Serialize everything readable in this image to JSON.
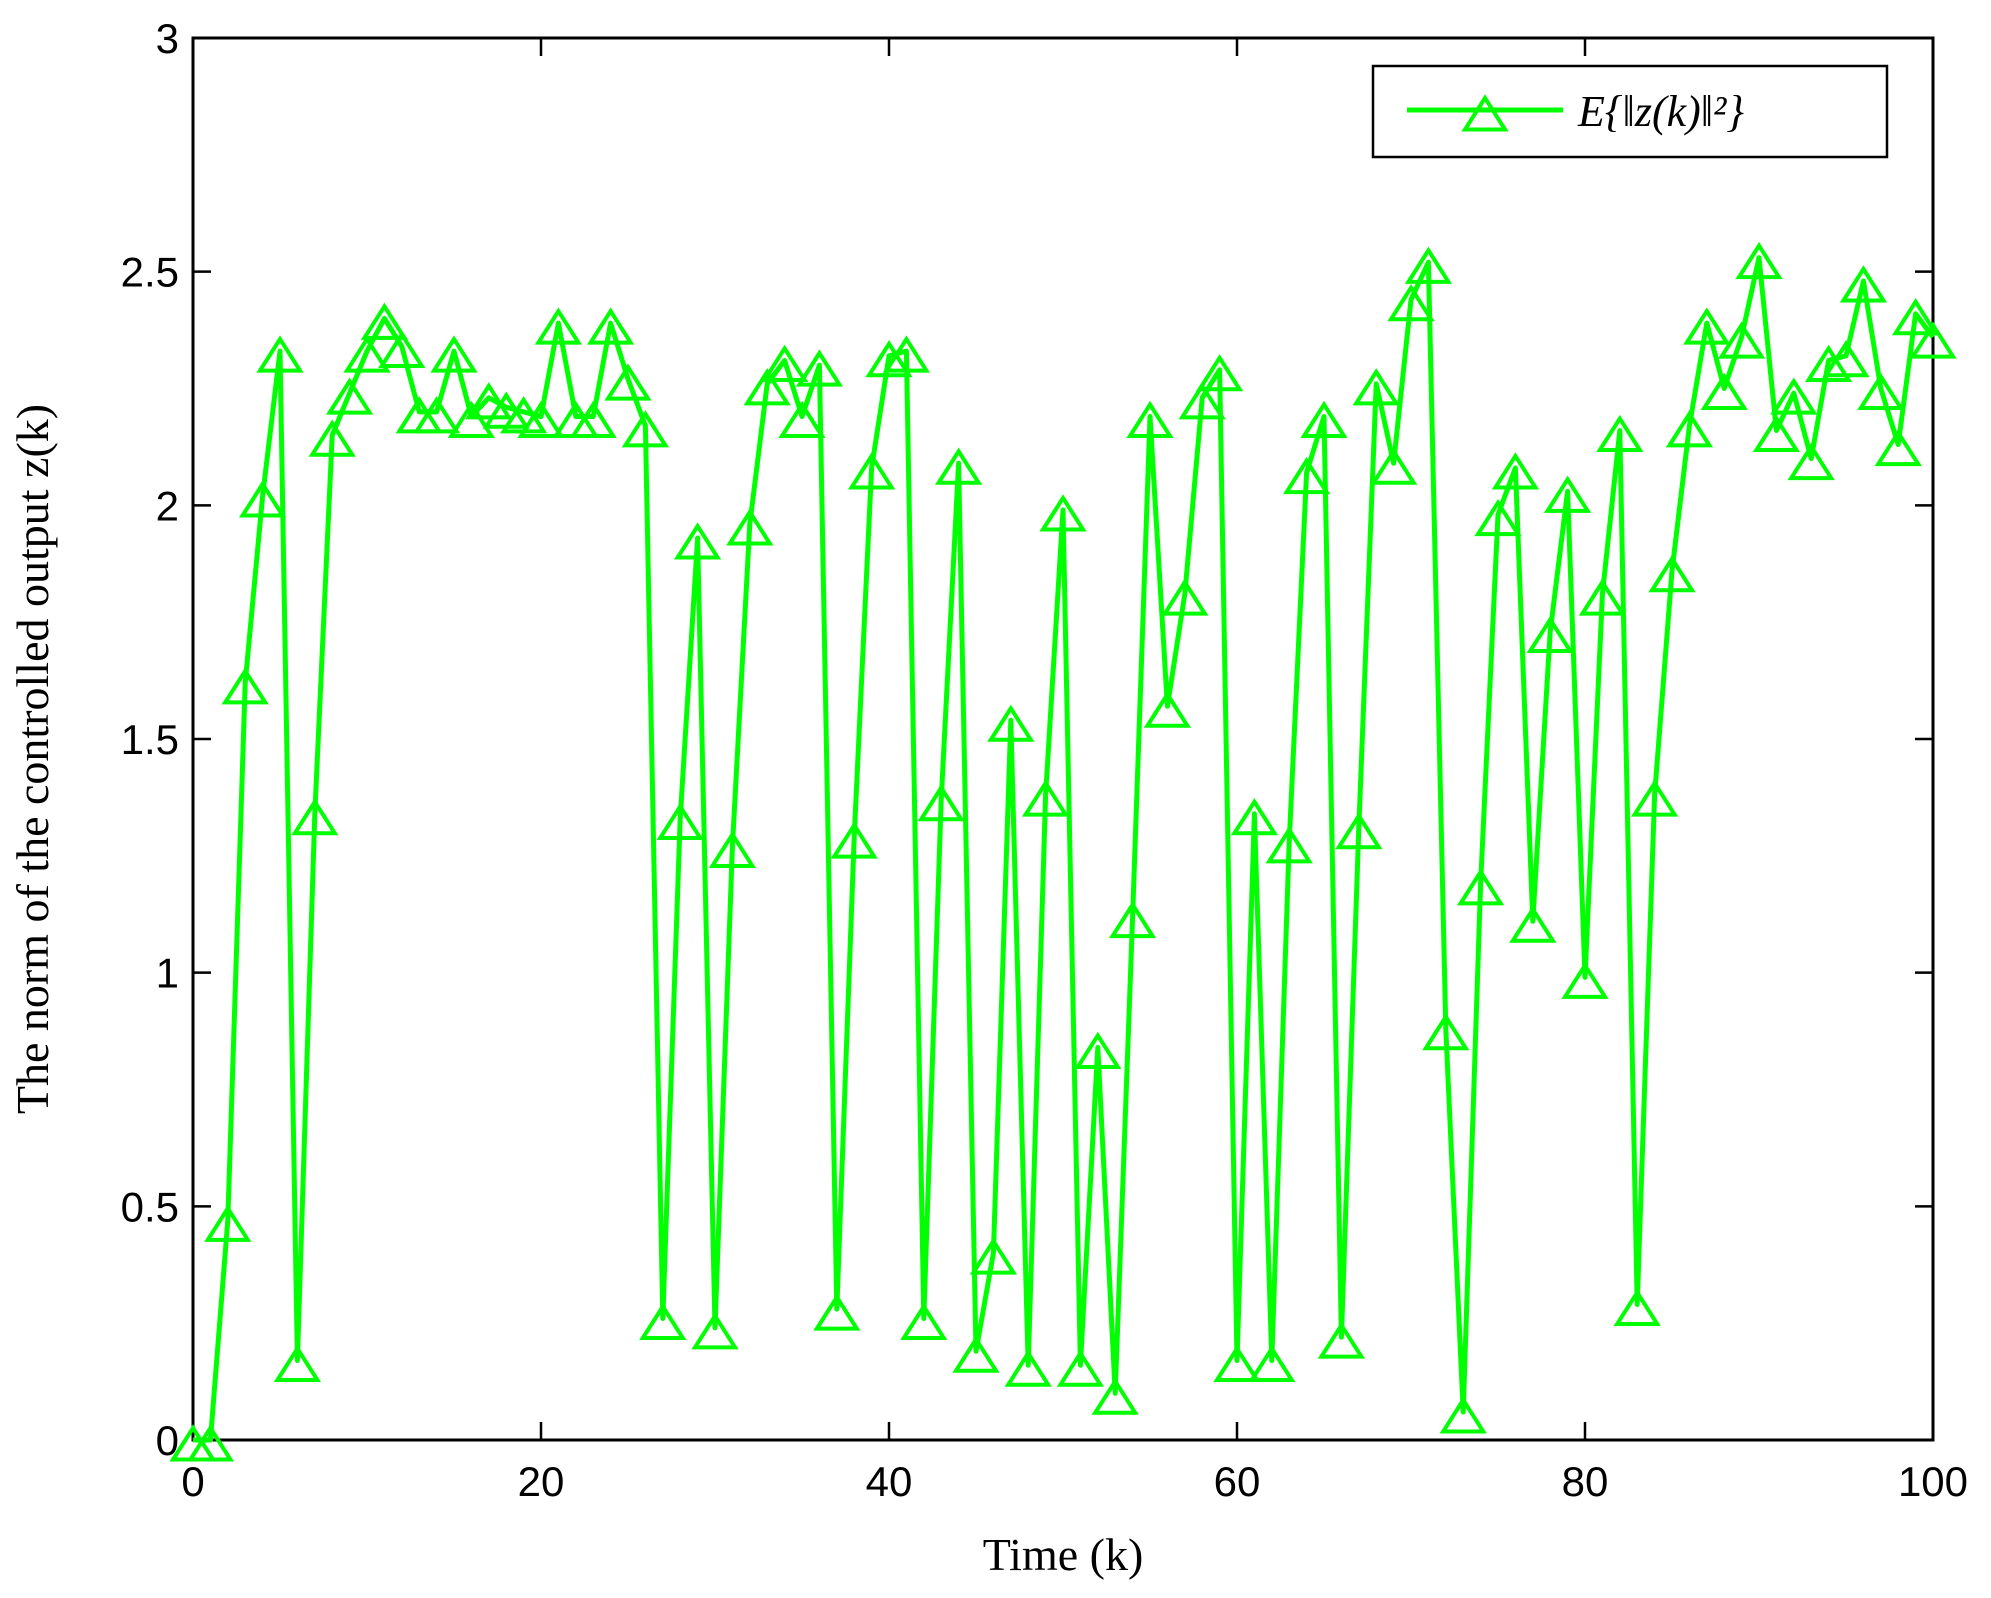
{
  "chart_data": {
    "type": "line",
    "title": "",
    "xlabel": "Time (k)",
    "ylabel": "The norm of the controlled output z(k)",
    "xlim": [
      0,
      100
    ],
    "ylim": [
      0,
      3
    ],
    "xticks": [
      0,
      20,
      40,
      60,
      80,
      100
    ],
    "yticks": [
      0,
      0.5,
      1,
      1.5,
      2,
      2.5,
      3
    ],
    "xtick_labels": [
      "0",
      "20",
      "40",
      "60",
      "80",
      "100"
    ],
    "ytick_labels": [
      "0",
      "0.5",
      "1",
      "1.5",
      "2",
      "2.5",
      "3"
    ],
    "grid": false,
    "legend_position": "top-right",
    "series": [
      {
        "name": "E{‖z(k)‖²}",
        "color": "#00ff00",
        "marker": "triangle-up",
        "x": [
          0,
          1,
          2,
          3,
          4,
          5,
          6,
          7,
          8,
          9,
          10,
          11,
          12,
          13,
          14,
          15,
          16,
          17,
          18,
          19,
          20,
          21,
          22,
          23,
          24,
          25,
          26,
          27,
          28,
          29,
          30,
          31,
          32,
          33,
          34,
          35,
          36,
          37,
          38,
          39,
          40,
          41,
          42,
          43,
          44,
          45,
          46,
          47,
          48,
          49,
          50,
          51,
          52,
          53,
          54,
          55,
          56,
          57,
          58,
          59,
          60,
          61,
          62,
          63,
          64,
          65,
          66,
          67,
          68,
          69,
          70,
          71,
          72,
          73,
          74,
          75,
          76,
          77,
          78,
          79,
          80,
          81,
          82,
          83,
          84,
          85,
          86,
          87,
          88,
          89,
          90,
          91,
          92,
          93,
          94,
          95,
          96,
          97,
          98,
          99,
          100
        ],
        "values": [
          0.0,
          0.0,
          0.47,
          1.62,
          2.02,
          2.33,
          0.17,
          1.34,
          2.15,
          2.24,
          2.33,
          2.4,
          2.34,
          2.2,
          2.2,
          2.33,
          2.19,
          2.23,
          2.21,
          2.2,
          2.19,
          2.39,
          2.19,
          2.19,
          2.39,
          2.27,
          2.17,
          0.26,
          1.33,
          1.93,
          0.24,
          1.27,
          1.96,
          2.26,
          2.31,
          2.19,
          2.3,
          0.28,
          1.29,
          2.08,
          2.32,
          2.33,
          0.26,
          1.37,
          2.09,
          0.19,
          0.4,
          1.54,
          0.16,
          1.38,
          1.99,
          0.16,
          0.84,
          0.1,
          1.12,
          2.19,
          1.57,
          1.81,
          2.23,
          2.29,
          0.17,
          1.34,
          0.17,
          1.28,
          2.07,
          2.19,
          0.22,
          1.31,
          2.26,
          2.09,
          2.44,
          2.52,
          0.88,
          0.06,
          1.19,
          1.98,
          2.08,
          1.11,
          1.73,
          2.03,
          0.99,
          1.81,
          2.16,
          0.29,
          1.38,
          1.86,
          2.17,
          2.39,
          2.25,
          2.36,
          2.53,
          2.16,
          2.24,
          2.1,
          2.31,
          2.32,
          2.48,
          2.25,
          2.13,
          2.41,
          2.36
        ]
      }
    ]
  }
}
